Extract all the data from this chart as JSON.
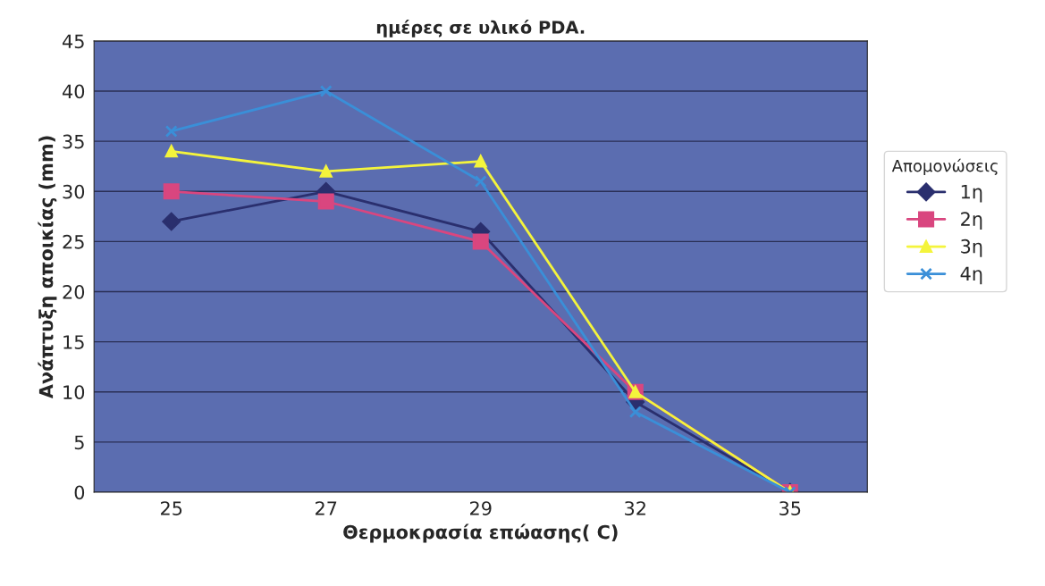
{
  "chart_data": {
    "type": "line",
    "title": "ημέρες σε υλικό PDA.",
    "xlabel": "Θερμοκρασία επώασης( C)",
    "ylabel": "Ανάπτυξη αποικίας (mm)",
    "legend_title": "Απομονώσεις",
    "categories": [
      "25",
      "27",
      "29",
      "32",
      "35"
    ],
    "series": [
      {
        "name": "1η",
        "color": "#2a2f6e",
        "marker": "diamond",
        "values": [
          27,
          30,
          26,
          9,
          0
        ]
      },
      {
        "name": "2η",
        "color": "#d9467f",
        "marker": "square",
        "values": [
          30,
          29,
          25,
          10,
          0
        ]
      },
      {
        "name": "3η",
        "color": "#f4f43c",
        "marker": "triangle",
        "values": [
          34,
          32,
          33,
          10,
          0
        ]
      },
      {
        "name": "4η",
        "color": "#3a8fd8",
        "marker": "cross",
        "values": [
          36,
          40,
          31,
          8,
          0
        ]
      }
    ],
    "ylim": [
      0,
      45
    ],
    "yticks": [
      0,
      5,
      10,
      15,
      20,
      25,
      30,
      35,
      40,
      45
    ],
    "grid": "y",
    "legend": "right",
    "line_style": "solid"
  }
}
